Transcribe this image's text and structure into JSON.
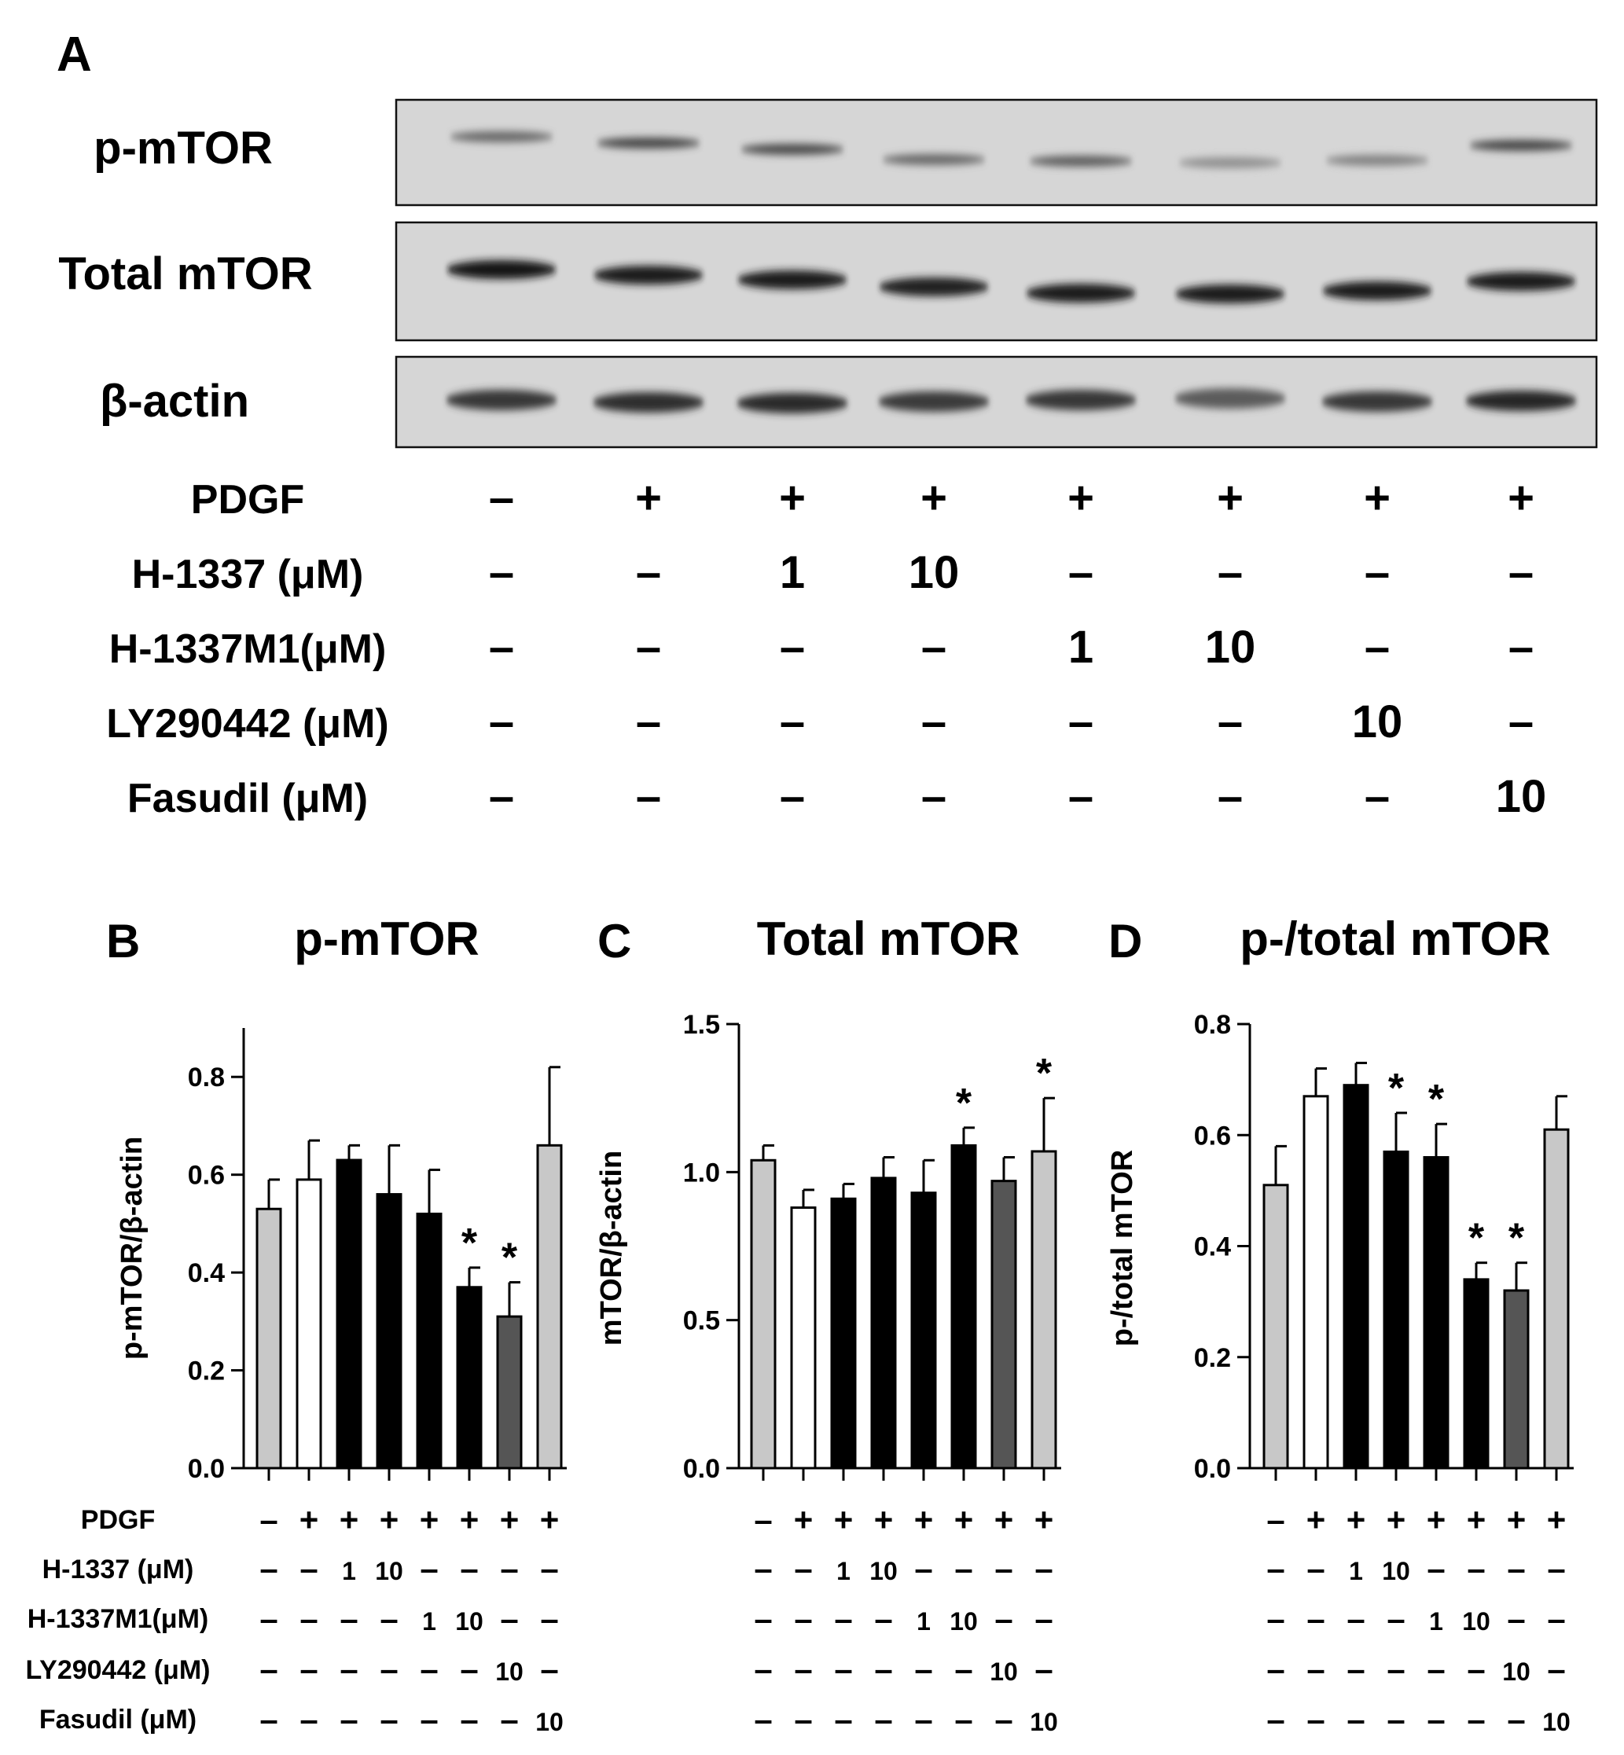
{
  "panel_a": {
    "letter": "A",
    "blots": [
      {
        "label": "p-mTOR",
        "band_intensity": [
          0.55,
          0.72,
          0.7,
          0.55,
          0.6,
          0.35,
          0.42,
          0.72
        ]
      },
      {
        "label": "Total mTOR",
        "band_intensity": [
          0.95,
          0.93,
          0.92,
          0.9,
          0.93,
          0.92,
          0.92,
          0.93
        ]
      },
      {
        "label": "β-actin",
        "band_intensity": [
          0.8,
          0.85,
          0.86,
          0.78,
          0.8,
          0.62,
          0.8,
          0.88
        ]
      }
    ],
    "conditions": [
      {
        "label": "PDGF",
        "values": [
          "–",
          "+",
          "+",
          "+",
          "+",
          "+",
          "+",
          "+"
        ]
      },
      {
        "label": "H-1337 (μM)",
        "values": [
          "–",
          "–",
          "1",
          "10",
          "–",
          "–",
          "–",
          "–"
        ]
      },
      {
        "label": "H-1337M1(μM)",
        "values": [
          "–",
          "–",
          "–",
          "–",
          "1",
          "10",
          "–",
          "–"
        ]
      },
      {
        "label": "LY290442 (μM)",
        "values": [
          "–",
          "–",
          "–",
          "–",
          "–",
          "–",
          "10",
          "–"
        ]
      },
      {
        "label": "Fasudil (μM)",
        "values": [
          "–",
          "–",
          "–",
          "–",
          "–",
          "–",
          "–",
          "10"
        ]
      }
    ]
  },
  "bar_colors": [
    "#c8c8c8",
    "#ffffff",
    "#000000",
    "#000000",
    "#000000",
    "#000000",
    "#555555",
    "#c8c8c8"
  ],
  "condition_labels": [
    "PDGF",
    "H-1337 (μM)",
    "H-1337M1(μM)",
    "LY290442 (μM)",
    "Fasudil (μM)"
  ],
  "chart_data": [
    {
      "type": "bar",
      "letter": "B",
      "title": "p-mTOR",
      "ylabel": "p-mTOR/β-actin",
      "ylim": [
        0,
        0.9
      ],
      "yticks": [
        "0.0",
        "0.2",
        "0.4",
        "0.6",
        "0.8"
      ],
      "values": [
        0.53,
        0.59,
        0.63,
        0.56,
        0.52,
        0.37,
        0.31,
        0.66
      ],
      "errors": [
        0.06,
        0.08,
        0.03,
        0.1,
        0.09,
        0.04,
        0.07,
        0.16
      ],
      "significant": [
        false,
        false,
        false,
        false,
        false,
        true,
        true,
        false
      ],
      "significance_mark": "*"
    },
    {
      "type": "bar",
      "letter": "C",
      "title": "Total mTOR",
      "ylabel": "mTOR/β-actin",
      "ylim": [
        0,
        1.5
      ],
      "yticks": [
        "0.0",
        "0.5",
        "1.0",
        "1.5"
      ],
      "values": [
        1.04,
        0.88,
        0.91,
        0.98,
        0.93,
        1.09,
        0.97,
        1.07
      ],
      "errors": [
        0.05,
        0.06,
        0.05,
        0.07,
        0.11,
        0.06,
        0.08,
        0.18
      ],
      "significant": [
        false,
        false,
        false,
        false,
        false,
        true,
        false,
        true
      ],
      "significance_mark": "*"
    },
    {
      "type": "bar",
      "letter": "D",
      "title": "p-/total mTOR",
      "ylabel": "p-/total mTOR",
      "ylim": [
        0,
        0.8
      ],
      "yticks": [
        "0.0",
        "0.2",
        "0.4",
        "0.6",
        "0.8"
      ],
      "values": [
        0.51,
        0.67,
        0.69,
        0.57,
        0.56,
        0.34,
        0.32,
        0.61
      ],
      "errors": [
        0.07,
        0.05,
        0.04,
        0.07,
        0.06,
        0.03,
        0.05,
        0.06
      ],
      "significant": [
        false,
        false,
        false,
        true,
        true,
        true,
        true,
        false
      ],
      "significance_mark": "*"
    }
  ]
}
